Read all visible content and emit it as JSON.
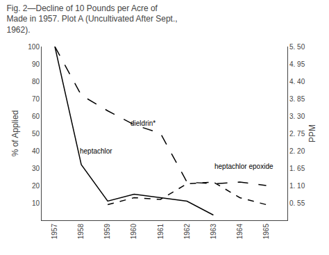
{
  "chart_data": {
    "type": "line",
    "title": "Fig. 2—Decline of 10 Pounds per Acre of\nMade in 1957. Plot A (Uncultivated After Sept.,\n1962).",
    "x_label": null,
    "y_label": "% of Applied",
    "y2_label": "PPM",
    "x": [
      1957,
      1958,
      1959,
      1960,
      1961,
      1962,
      1963,
      1964,
      1965
    ],
    "xlim": [
      1956.5,
      1965.8
    ],
    "xticks": [
      1957,
      1958,
      1959,
      1960,
      1961,
      1962,
      1963,
      1964,
      1965
    ],
    "ylim": [
      0,
      100
    ],
    "yticks": [
      10,
      20,
      30,
      40,
      50,
      60,
      70,
      80,
      90,
      100
    ],
    "y2lim": [
      0,
      5.5
    ],
    "y2ticks": [
      {
        "value": 0.55,
        "label": "0. 55"
      },
      {
        "value": 1.1,
        "label": "1. 10"
      },
      {
        "value": 1.65,
        "label": "1. 65"
      },
      {
        "value": 2.2,
        "label": "2. 20"
      },
      {
        "value": 2.75,
        "label": "2. 75"
      },
      {
        "value": 3.3,
        "label": "3. 30"
      },
      {
        "value": 3.85,
        "label": "3. 85"
      },
      {
        "value": 4.4,
        "label": "4. 40"
      },
      {
        "value": 4.95,
        "label": "4. 95"
      },
      {
        "value": 5.5,
        "label": "5. 50"
      }
    ],
    "grid": false,
    "series": [
      {
        "name": "dieldrin",
        "color": "#000000",
        "line_style": "dashed",
        "values": [
          100,
          72,
          63,
          55,
          50,
          22,
          21,
          22,
          20
        ]
      },
      {
        "name": "heptachlor",
        "color": "#000000",
        "line_style": "solid",
        "values": [
          100,
          32,
          11,
          15,
          13,
          11,
          3,
          null,
          null
        ]
      },
      {
        "name": "heptachlor epoxide",
        "color": "#000000",
        "line_style": "short_dashed",
        "values": [
          null,
          null,
          9,
          13,
          12,
          21,
          22,
          13,
          9
        ]
      }
    ],
    "annotations": [
      {
        "text": "dieldrin*",
        "x": 1959.8,
        "y": 53
      },
      {
        "text": "heptachlor",
        "x": 1957.9,
        "y": 37
      },
      {
        "text": "heptachlor epoxide",
        "x": 1963.0,
        "y": 28
      }
    ]
  }
}
